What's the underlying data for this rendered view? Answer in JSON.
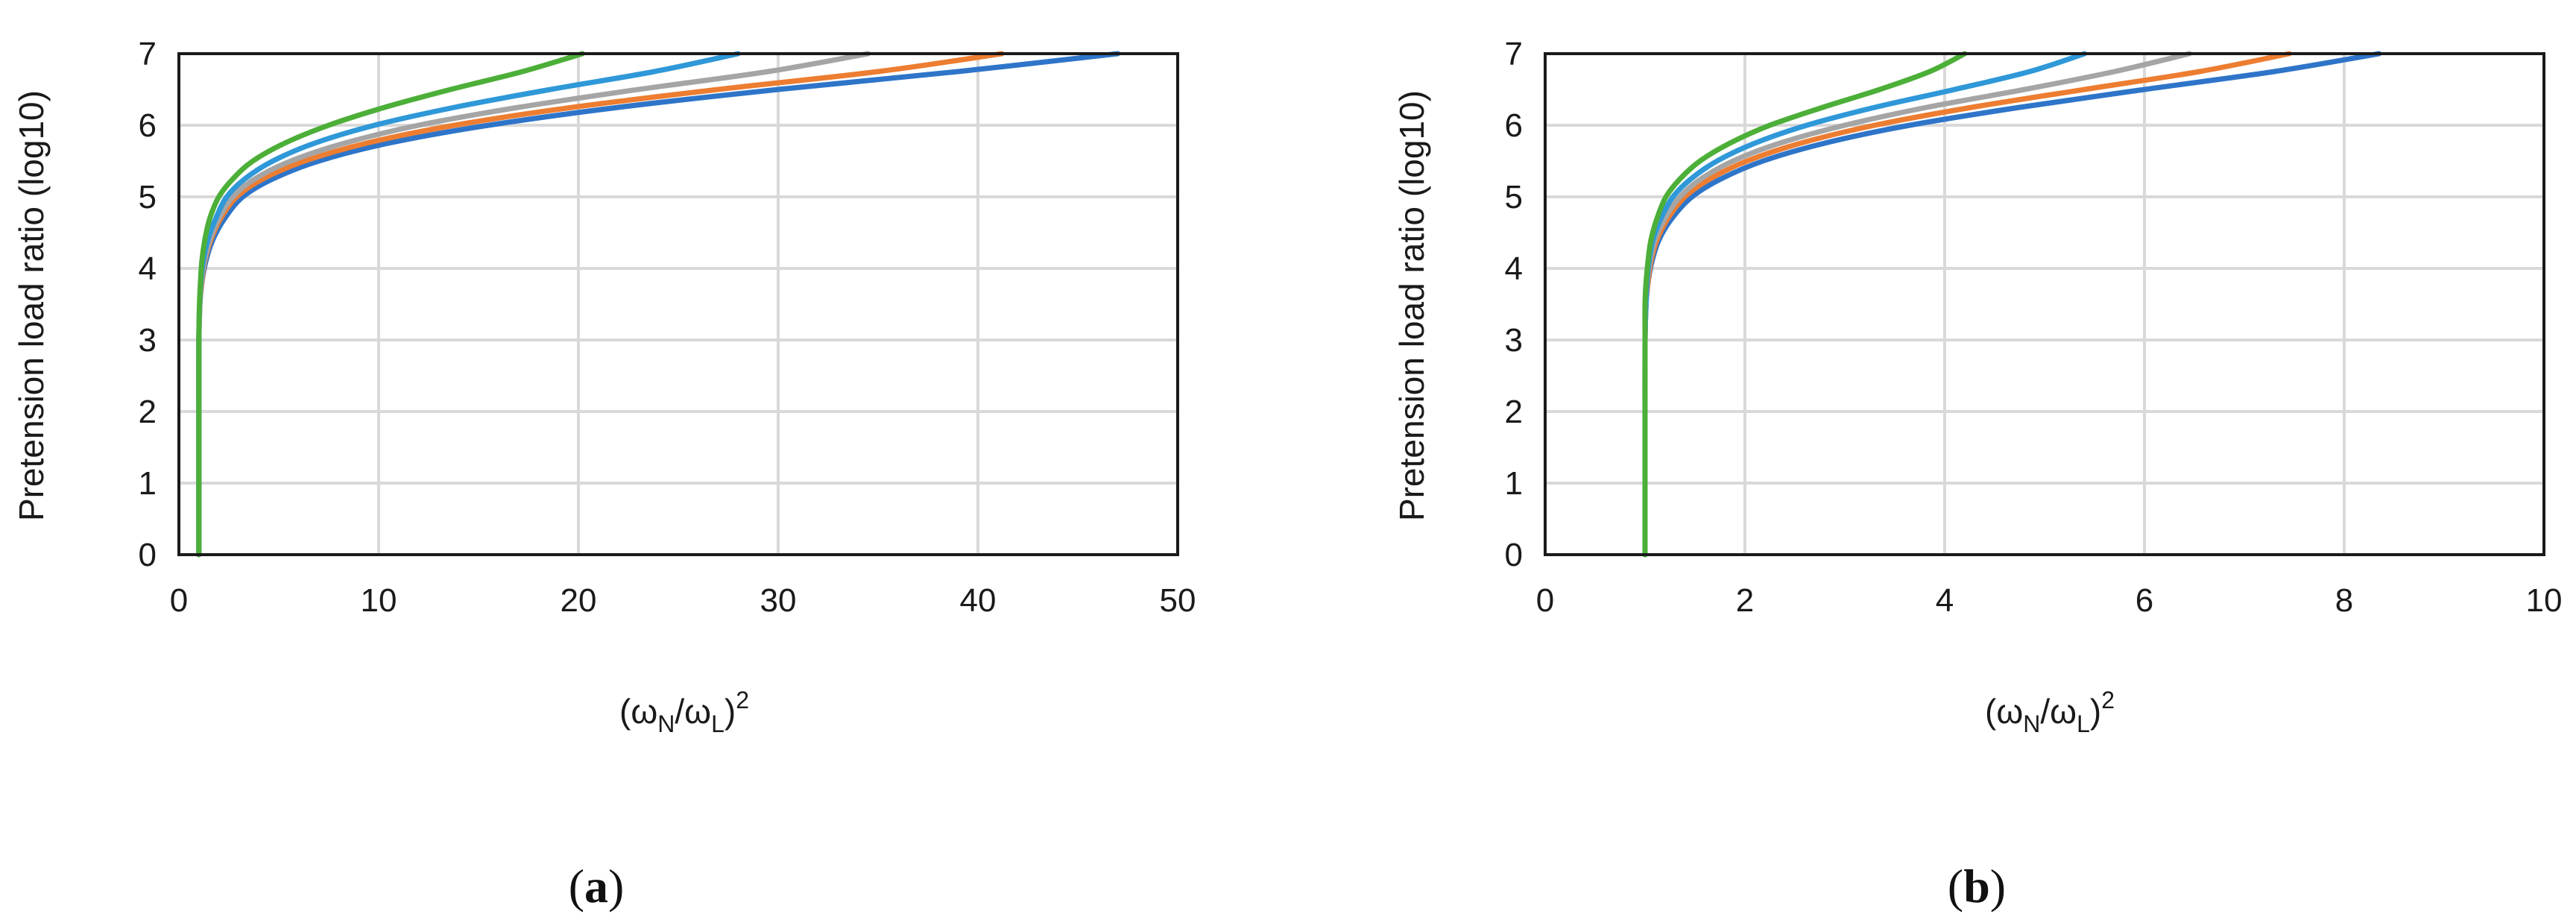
{
  "chart_data": [
    {
      "panel": "a",
      "type": "line",
      "caption_open": "(",
      "caption_letter": "a",
      "caption_close": ")",
      "xlabel": {
        "pre": "(ω",
        "sub1": "N",
        "mid": "/ω",
        "sub2": "L",
        "post": ")",
        "sup": "2"
      },
      "ylabel": "Pretension load ratio (log10)",
      "xlim": [
        0,
        50
      ],
      "ylim": [
        0,
        7
      ],
      "xticks": [
        "0",
        "10",
        "20",
        "30",
        "40",
        "50"
      ],
      "yticks": [
        "0",
        "1",
        "2",
        "3",
        "4",
        "5",
        "6",
        "7"
      ],
      "grid": true,
      "series": [
        {
          "color": "#2e75c9",
          "x": [
            1.0,
            1.0,
            1.0,
            1.0,
            1.05,
            1.15,
            1.35,
            1.7,
            2.3,
            3.2,
            4.7,
            7.0,
            10.5,
            15.5,
            22.0,
            30.0,
            39.0,
            47.0
          ],
          "y": [
            0,
            1,
            2,
            3,
            3.5,
            3.8,
            4.1,
            4.4,
            4.7,
            5.0,
            5.25,
            5.5,
            5.75,
            6.0,
            6.25,
            6.5,
            6.75,
            7.0
          ]
        },
        {
          "color": "#ed7d31",
          "x": [
            1.0,
            1.0,
            1.0,
            1.0,
            1.05,
            1.15,
            1.3,
            1.6,
            2.1,
            2.9,
            4.2,
            6.3,
            9.4,
            13.8,
            19.7,
            27.0,
            35.0,
            41.2
          ],
          "y": [
            0,
            1,
            2,
            3,
            3.5,
            3.8,
            4.1,
            4.4,
            4.7,
            5.0,
            5.25,
            5.5,
            5.75,
            6.0,
            6.25,
            6.5,
            6.75,
            7.0
          ]
        },
        {
          "color": "#a5a5a5",
          "x": [
            1.0,
            1.0,
            1.0,
            1.0,
            1.05,
            1.12,
            1.28,
            1.55,
            2.0,
            2.7,
            3.8,
            5.6,
            8.3,
            12.0,
            17.0,
            23.0,
            29.5,
            34.5
          ],
          "y": [
            0,
            1,
            2,
            3,
            3.5,
            3.8,
            4.1,
            4.4,
            4.7,
            5.0,
            5.25,
            5.5,
            5.75,
            6.0,
            6.25,
            6.5,
            6.75,
            7.0
          ]
        },
        {
          "color": "#2f98d8",
          "x": [
            1.0,
            1.0,
            1.0,
            1.0,
            1.04,
            1.1,
            1.22,
            1.45,
            1.85,
            2.4,
            3.3,
            4.7,
            6.8,
            9.8,
            13.8,
            18.6,
            23.8,
            28.0
          ],
          "y": [
            0,
            1,
            2,
            3,
            3.5,
            3.8,
            4.1,
            4.4,
            4.7,
            5.0,
            5.25,
            5.5,
            5.75,
            6.0,
            6.25,
            6.5,
            6.75,
            7.0
          ]
        },
        {
          "color": "#4caf38",
          "x": [
            1.0,
            1.0,
            1.0,
            1.0,
            1.03,
            1.08,
            1.15,
            1.3,
            1.55,
            2.0,
            2.7,
            3.7,
            5.3,
            7.5,
            10.3,
            13.6,
            17.2,
            20.2
          ],
          "y": [
            0,
            1,
            2,
            3,
            3.5,
            3.8,
            4.1,
            4.4,
            4.7,
            5.0,
            5.25,
            5.5,
            5.75,
            6.0,
            6.25,
            6.5,
            6.75,
            7.0
          ]
        }
      ]
    },
    {
      "panel": "b",
      "type": "line",
      "caption_open": "(",
      "caption_letter": "b",
      "caption_close": ")",
      "xlabel": {
        "pre": "(ω",
        "sub1": "N",
        "mid": "/ω",
        "sub2": "L",
        "post": ")",
        "sup": "2"
      },
      "ylabel": "Pretension load ratio (log10)",
      "xlim": [
        0,
        10
      ],
      "ylim": [
        0,
        7
      ],
      "xticks": [
        "0",
        "2",
        "4",
        "6",
        "8",
        "10"
      ],
      "yticks": [
        "0",
        "1",
        "2",
        "3",
        "4",
        "5",
        "6",
        "7"
      ],
      "grid": true,
      "series": [
        {
          "color": "#2e75c9",
          "x": [
            1.0,
            1.0,
            1.0,
            1.0,
            1.01,
            1.03,
            1.07,
            1.14,
            1.27,
            1.47,
            1.76,
            2.18,
            2.8,
            3.65,
            4.75,
            6.0,
            7.3,
            8.35
          ],
          "y": [
            0,
            1,
            2,
            3,
            3.5,
            3.8,
            4.1,
            4.4,
            4.7,
            5.0,
            5.25,
            5.5,
            5.75,
            6.0,
            6.25,
            6.5,
            6.75,
            7.0
          ]
        },
        {
          "color": "#ed7d31",
          "x": [
            1.0,
            1.0,
            1.0,
            1.0,
            1.01,
            1.03,
            1.06,
            1.12,
            1.23,
            1.4,
            1.65,
            2.02,
            2.56,
            3.3,
            4.27,
            5.4,
            6.55,
            7.45
          ],
          "y": [
            0,
            1,
            2,
            3,
            3.5,
            3.8,
            4.1,
            4.4,
            4.7,
            5.0,
            5.25,
            5.5,
            5.75,
            6.0,
            6.25,
            6.5,
            6.75,
            7.0
          ]
        },
        {
          "color": "#a5a5a5",
          "x": [
            1.0,
            1.0,
            1.0,
            1.0,
            1.01,
            1.02,
            1.05,
            1.1,
            1.2,
            1.35,
            1.56,
            1.88,
            2.35,
            3.0,
            3.82,
            4.8,
            5.7,
            6.45
          ],
          "y": [
            0,
            1,
            2,
            3,
            3.5,
            3.8,
            4.1,
            4.4,
            4.7,
            5.0,
            5.25,
            5.5,
            5.75,
            6.0,
            6.25,
            6.5,
            6.75,
            7.0
          ]
        },
        {
          "color": "#2f98d8",
          "x": [
            1.0,
            1.0,
            1.0,
            1.0,
            1.01,
            1.02,
            1.04,
            1.08,
            1.16,
            1.28,
            1.46,
            1.72,
            2.1,
            2.62,
            3.3,
            4.1,
            4.85,
            5.4
          ],
          "y": [
            0,
            1,
            2,
            3,
            3.5,
            3.8,
            4.1,
            4.4,
            4.7,
            5.0,
            5.25,
            5.5,
            5.75,
            6.0,
            6.25,
            6.5,
            6.75,
            7.0
          ]
        },
        {
          "color": "#4caf38",
          "x": [
            1.0,
            1.0,
            1.0,
            1.0,
            1.0,
            1.01,
            1.03,
            1.06,
            1.12,
            1.21,
            1.35,
            1.55,
            1.85,
            2.25,
            2.78,
            3.35,
            3.85,
            4.2
          ],
          "y": [
            0,
            1,
            2,
            3,
            3.5,
            3.8,
            4.1,
            4.4,
            4.7,
            5.0,
            5.25,
            5.5,
            5.75,
            6.0,
            6.25,
            6.5,
            6.75,
            7.0
          ]
        }
      ]
    }
  ]
}
